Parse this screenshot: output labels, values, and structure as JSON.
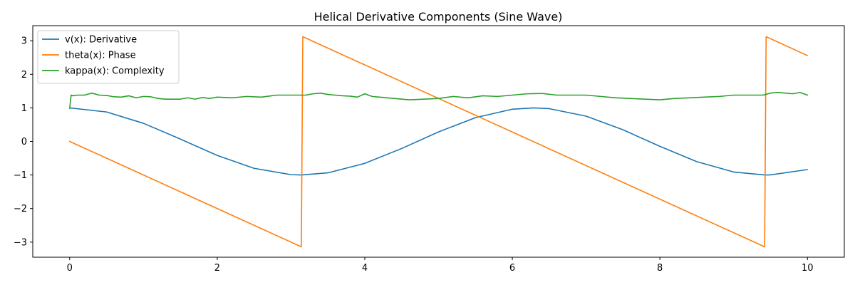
{
  "chart_data": {
    "type": "line",
    "title": "Helical Derivative Components (Sine Wave)",
    "xlabel": "",
    "ylabel": "",
    "xlim": [
      -0.5,
      10.5
    ],
    "ylim": [
      -3.45,
      3.45
    ],
    "xticks": [
      0,
      2,
      4,
      6,
      8,
      10
    ],
    "yticks": [
      -3,
      -2,
      -1,
      0,
      1,
      2,
      3
    ],
    "xtick_labels": [
      "0",
      "2",
      "4",
      "6",
      "8",
      "10"
    ],
    "ytick_labels": [
      "−3",
      "−2",
      "−1",
      "0",
      "1",
      "2",
      "3"
    ],
    "grid": false,
    "legend_position": "upper-left",
    "series": [
      {
        "name": "v(x): Derivative",
        "color": "#1f77b4",
        "x": [
          0,
          0.5,
          1,
          1.5,
          2,
          2.5,
          3,
          3.1416,
          3.5,
          4,
          4.5,
          5,
          5.5,
          6,
          6.2832,
          6.5,
          7,
          7.5,
          8,
          8.5,
          9,
          9.4248,
          9.5,
          10
        ],
        "values": [
          1.0,
          0.878,
          0.54,
          0.071,
          -0.416,
          -0.801,
          -0.99,
          -1.0,
          -0.936,
          -0.654,
          -0.211,
          0.284,
          0.709,
          0.96,
          1.0,
          0.977,
          0.754,
          0.347,
          -0.146,
          -0.602,
          -0.911,
          -1.0,
          -0.997,
          -0.839
        ]
      },
      {
        "name": "theta(x): Phase",
        "color": "#ff7f0e",
        "x": [
          0,
          3.14,
          3.16,
          9.42,
          9.44,
          10
        ],
        "values": [
          0,
          -3.14,
          3.12,
          -3.14,
          3.12,
          2.56
        ]
      },
      {
        "name": "kappa(x): Complexity",
        "color": "#2ca02c",
        "x": [
          0,
          0.02,
          0.05,
          0.1,
          0.2,
          0.3,
          0.4,
          0.5,
          0.6,
          0.7,
          0.8,
          0.9,
          1.0,
          1.1,
          1.2,
          1.3,
          1.4,
          1.5,
          1.6,
          1.7,
          1.8,
          1.9,
          2.0,
          2.2,
          2.4,
          2.6,
          2.8,
          3.0,
          3.1,
          3.2,
          3.3,
          3.4,
          3.5,
          3.6,
          3.7,
          3.8,
          3.9,
          4.0,
          4.1,
          4.2,
          4.4,
          4.6,
          4.8,
          5.0,
          5.2,
          5.4,
          5.6,
          5.8,
          6.0,
          6.2,
          6.4,
          6.6,
          6.8,
          7.0,
          7.2,
          7.4,
          7.6,
          7.8,
          8.0,
          8.2,
          8.4,
          8.6,
          8.8,
          9.0,
          9.2,
          9.4,
          9.5,
          9.6,
          9.7,
          9.8,
          9.9,
          10.0
        ],
        "values": [
          0.98,
          1.38,
          1.36,
          1.38,
          1.38,
          1.44,
          1.38,
          1.37,
          1.33,
          1.32,
          1.36,
          1.3,
          1.34,
          1.33,
          1.28,
          1.26,
          1.26,
          1.26,
          1.3,
          1.26,
          1.31,
          1.28,
          1.32,
          1.3,
          1.34,
          1.32,
          1.38,
          1.38,
          1.38,
          1.38,
          1.42,
          1.44,
          1.4,
          1.38,
          1.36,
          1.35,
          1.32,
          1.42,
          1.34,
          1.32,
          1.28,
          1.24,
          1.26,
          1.28,
          1.34,
          1.3,
          1.36,
          1.34,
          1.38,
          1.42,
          1.43,
          1.38,
          1.38,
          1.38,
          1.34,
          1.3,
          1.28,
          1.26,
          1.24,
          1.28,
          1.3,
          1.32,
          1.34,
          1.38,
          1.38,
          1.38,
          1.44,
          1.46,
          1.44,
          1.42,
          1.46,
          1.38
        ]
      }
    ]
  }
}
